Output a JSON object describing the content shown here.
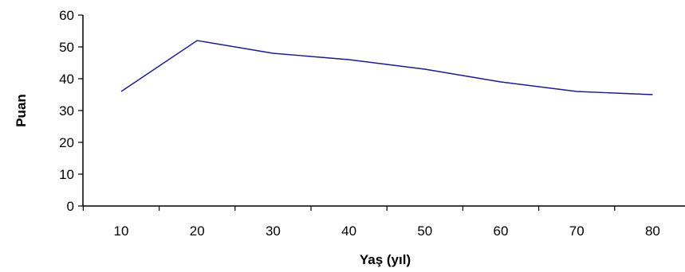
{
  "chart_data": {
    "type": "line",
    "title": "",
    "xlabel": "Yaş (yıl)",
    "ylabel": "Puan",
    "x": [
      10,
      20,
      30,
      40,
      50,
      60,
      70,
      80
    ],
    "series": [
      {
        "values": [
          36,
          52,
          48,
          46,
          43,
          39,
          36,
          35
        ],
        "color": "#1a1a8c"
      }
    ],
    "ylim": [
      0,
      60
    ],
    "yticks": [
      0,
      10,
      20,
      30,
      40,
      50,
      60
    ],
    "xticks": [
      "10",
      "20",
      "30",
      "40",
      "50",
      "60",
      "70",
      "80"
    ],
    "grid": false,
    "legend": "none"
  }
}
